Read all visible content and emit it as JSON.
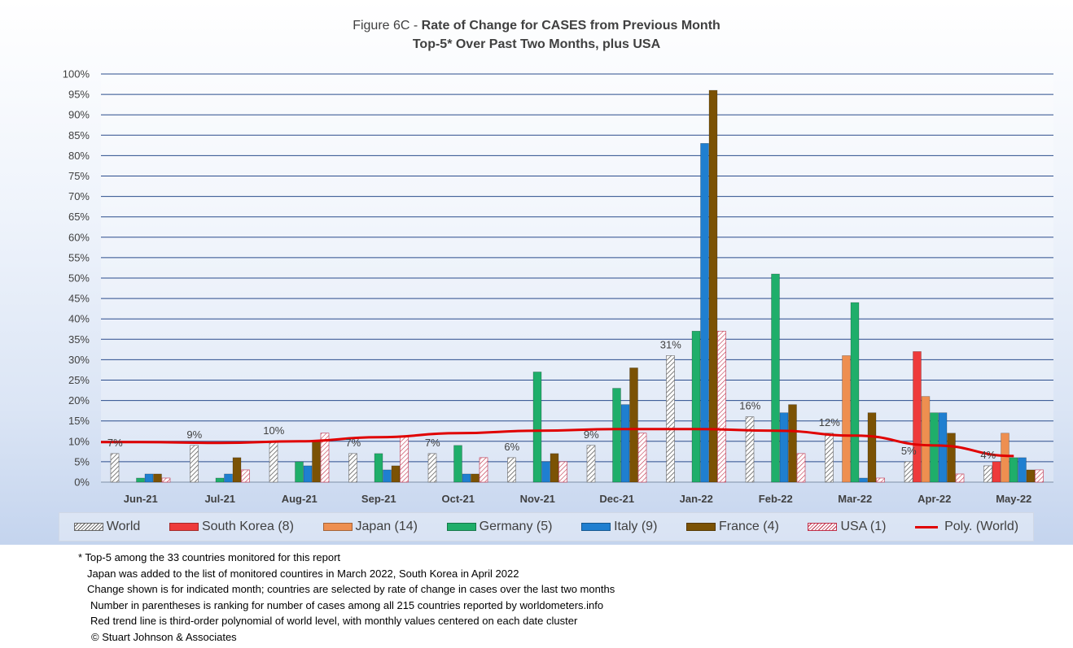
{
  "title": {
    "prefix": "Figure 6C - ",
    "bold": "Rate of Change for CASES from Previous Month",
    "line2": "Top-5* Over Past Two Months, plus USA"
  },
  "chart_data": {
    "type": "bar",
    "categories": [
      "Jun-21",
      "Jul-21",
      "Aug-21",
      "Sep-21",
      "Oct-21",
      "Nov-21",
      "Dec-21",
      "Jan-22",
      "Feb-22",
      "Mar-22",
      "Apr-22",
      "May-22"
    ],
    "ylim": [
      0,
      100
    ],
    "yticks": [
      "0%",
      "5%",
      "10%",
      "15%",
      "20%",
      "25%",
      "30%",
      "35%",
      "40%",
      "45%",
      "50%",
      "55%",
      "60%",
      "65%",
      "70%",
      "75%",
      "80%",
      "85%",
      "90%",
      "95%",
      "100%"
    ],
    "grid": true,
    "legend_position": "bottom",
    "series": [
      {
        "name": "World",
        "color": "#ffffff",
        "pattern": "diag",
        "values": [
          7,
          9,
          10,
          7,
          7,
          6,
          9,
          31,
          16,
          12,
          5,
          4
        ],
        "labels": [
          "7%",
          "9%",
          "10%",
          "7%",
          "7%",
          "6%",
          "9%",
          "31%",
          "16%",
          "12%",
          "5%",
          "4%"
        ]
      },
      {
        "name": "South Korea (8)",
        "color": "#ee3b3b",
        "values": [
          null,
          null,
          null,
          null,
          null,
          null,
          null,
          null,
          null,
          null,
          32,
          5
        ]
      },
      {
        "name": "Japan (14)",
        "color": "#ee8f50",
        "values": [
          null,
          null,
          null,
          null,
          null,
          null,
          null,
          null,
          null,
          31,
          21,
          12
        ]
      },
      {
        "name": "Germany (5)",
        "color": "#1fae6a",
        "values": [
          1,
          1,
          5,
          7,
          9,
          27,
          23,
          37,
          51,
          44,
          17,
          6
        ]
      },
      {
        "name": "Italy (9)",
        "color": "#1f7fd0",
        "values": [
          2,
          2,
          4,
          3,
          2,
          5,
          19,
          83,
          17,
          1,
          17,
          6
        ]
      },
      {
        "name": "France (4)",
        "color": "#7b5204",
        "values": [
          2,
          6,
          10,
          4,
          2,
          7,
          28,
          96,
          19,
          17,
          12,
          3
        ]
      },
      {
        "name": "USA (1)",
        "color": "#ffffff",
        "pattern": "red-diag",
        "values": [
          1,
          3,
          12,
          11,
          6,
          5,
          12,
          37,
          7,
          1,
          2,
          3
        ]
      }
    ],
    "trend": {
      "name": "Poly. (World)",
      "color": "#e00000",
      "values": [
        9.8,
        9.6,
        10.0,
        11.0,
        12.0,
        12.6,
        13.0,
        13.0,
        12.6,
        11.4,
        9.0,
        6.4
      ]
    }
  },
  "notes": [
    "* Top-5 among the 33 countries monitored for this report",
    "Japan was added to the list of monitored countires in March 2022, South Korea in April 2022",
    "Change shown is for indicated month; countries are selected by rate of change in cases over the last two months",
    "Number in parentheses is ranking for number of cases among all 215 countries reported by worldometers.info",
    "Red trend line is third-order polynomial of world level, with monthly values centered on each date cluster",
    "© Stuart Johnson & Associates"
  ]
}
